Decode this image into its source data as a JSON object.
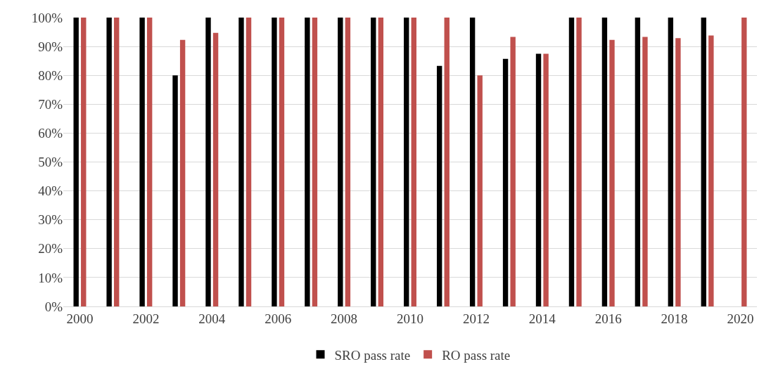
{
  "chart_data": {
    "type": "bar",
    "x": [
      2000,
      2001,
      2002,
      2003,
      2004,
      2005,
      2006,
      2007,
      2008,
      2009,
      2010,
      2011,
      2012,
      2013,
      2014,
      2015,
      2016,
      2017,
      2018,
      2019,
      2020
    ],
    "series": [
      {
        "name": "SRO pass rate",
        "color": "#000000",
        "values": [
          100,
          100,
          100,
          80,
          100,
          100,
          100,
          100,
          100,
          100,
          100,
          83.3,
          100,
          85.7,
          87.5,
          100,
          100,
          100,
          100,
          100,
          null
        ]
      },
      {
        "name": "RO pass rate",
        "color": "#c0504d",
        "values": [
          100,
          100,
          100,
          92.3,
          94.7,
          100,
          100,
          100,
          100,
          100,
          100,
          100,
          80,
          93.3,
          87.5,
          100,
          92.3,
          93.3,
          92.9,
          93.8,
          100
        ]
      }
    ],
    "xlim": [
      1999.5,
      2020.5
    ],
    "xticks": [
      2000,
      2002,
      2004,
      2006,
      2008,
      2010,
      2012,
      2014,
      2016,
      2018,
      2020
    ],
    "ylim": [
      0,
      100
    ],
    "yticks": [
      {
        "value": 0,
        "label": "0%"
      },
      {
        "value": 10,
        "label": "10%"
      },
      {
        "value": 20,
        "label": "20%"
      },
      {
        "value": 30,
        "label": "30%"
      },
      {
        "value": 40,
        "label": "40%"
      },
      {
        "value": 50,
        "label": "50%"
      },
      {
        "value": 60,
        "label": "60%"
      },
      {
        "value": 70,
        "label": "70%"
      },
      {
        "value": 80,
        "label": "80%"
      },
      {
        "value": 90,
        "label": "90%"
      },
      {
        "value": 100,
        "label": "100%"
      }
    ],
    "grid": "y",
    "legend": "bottom"
  }
}
